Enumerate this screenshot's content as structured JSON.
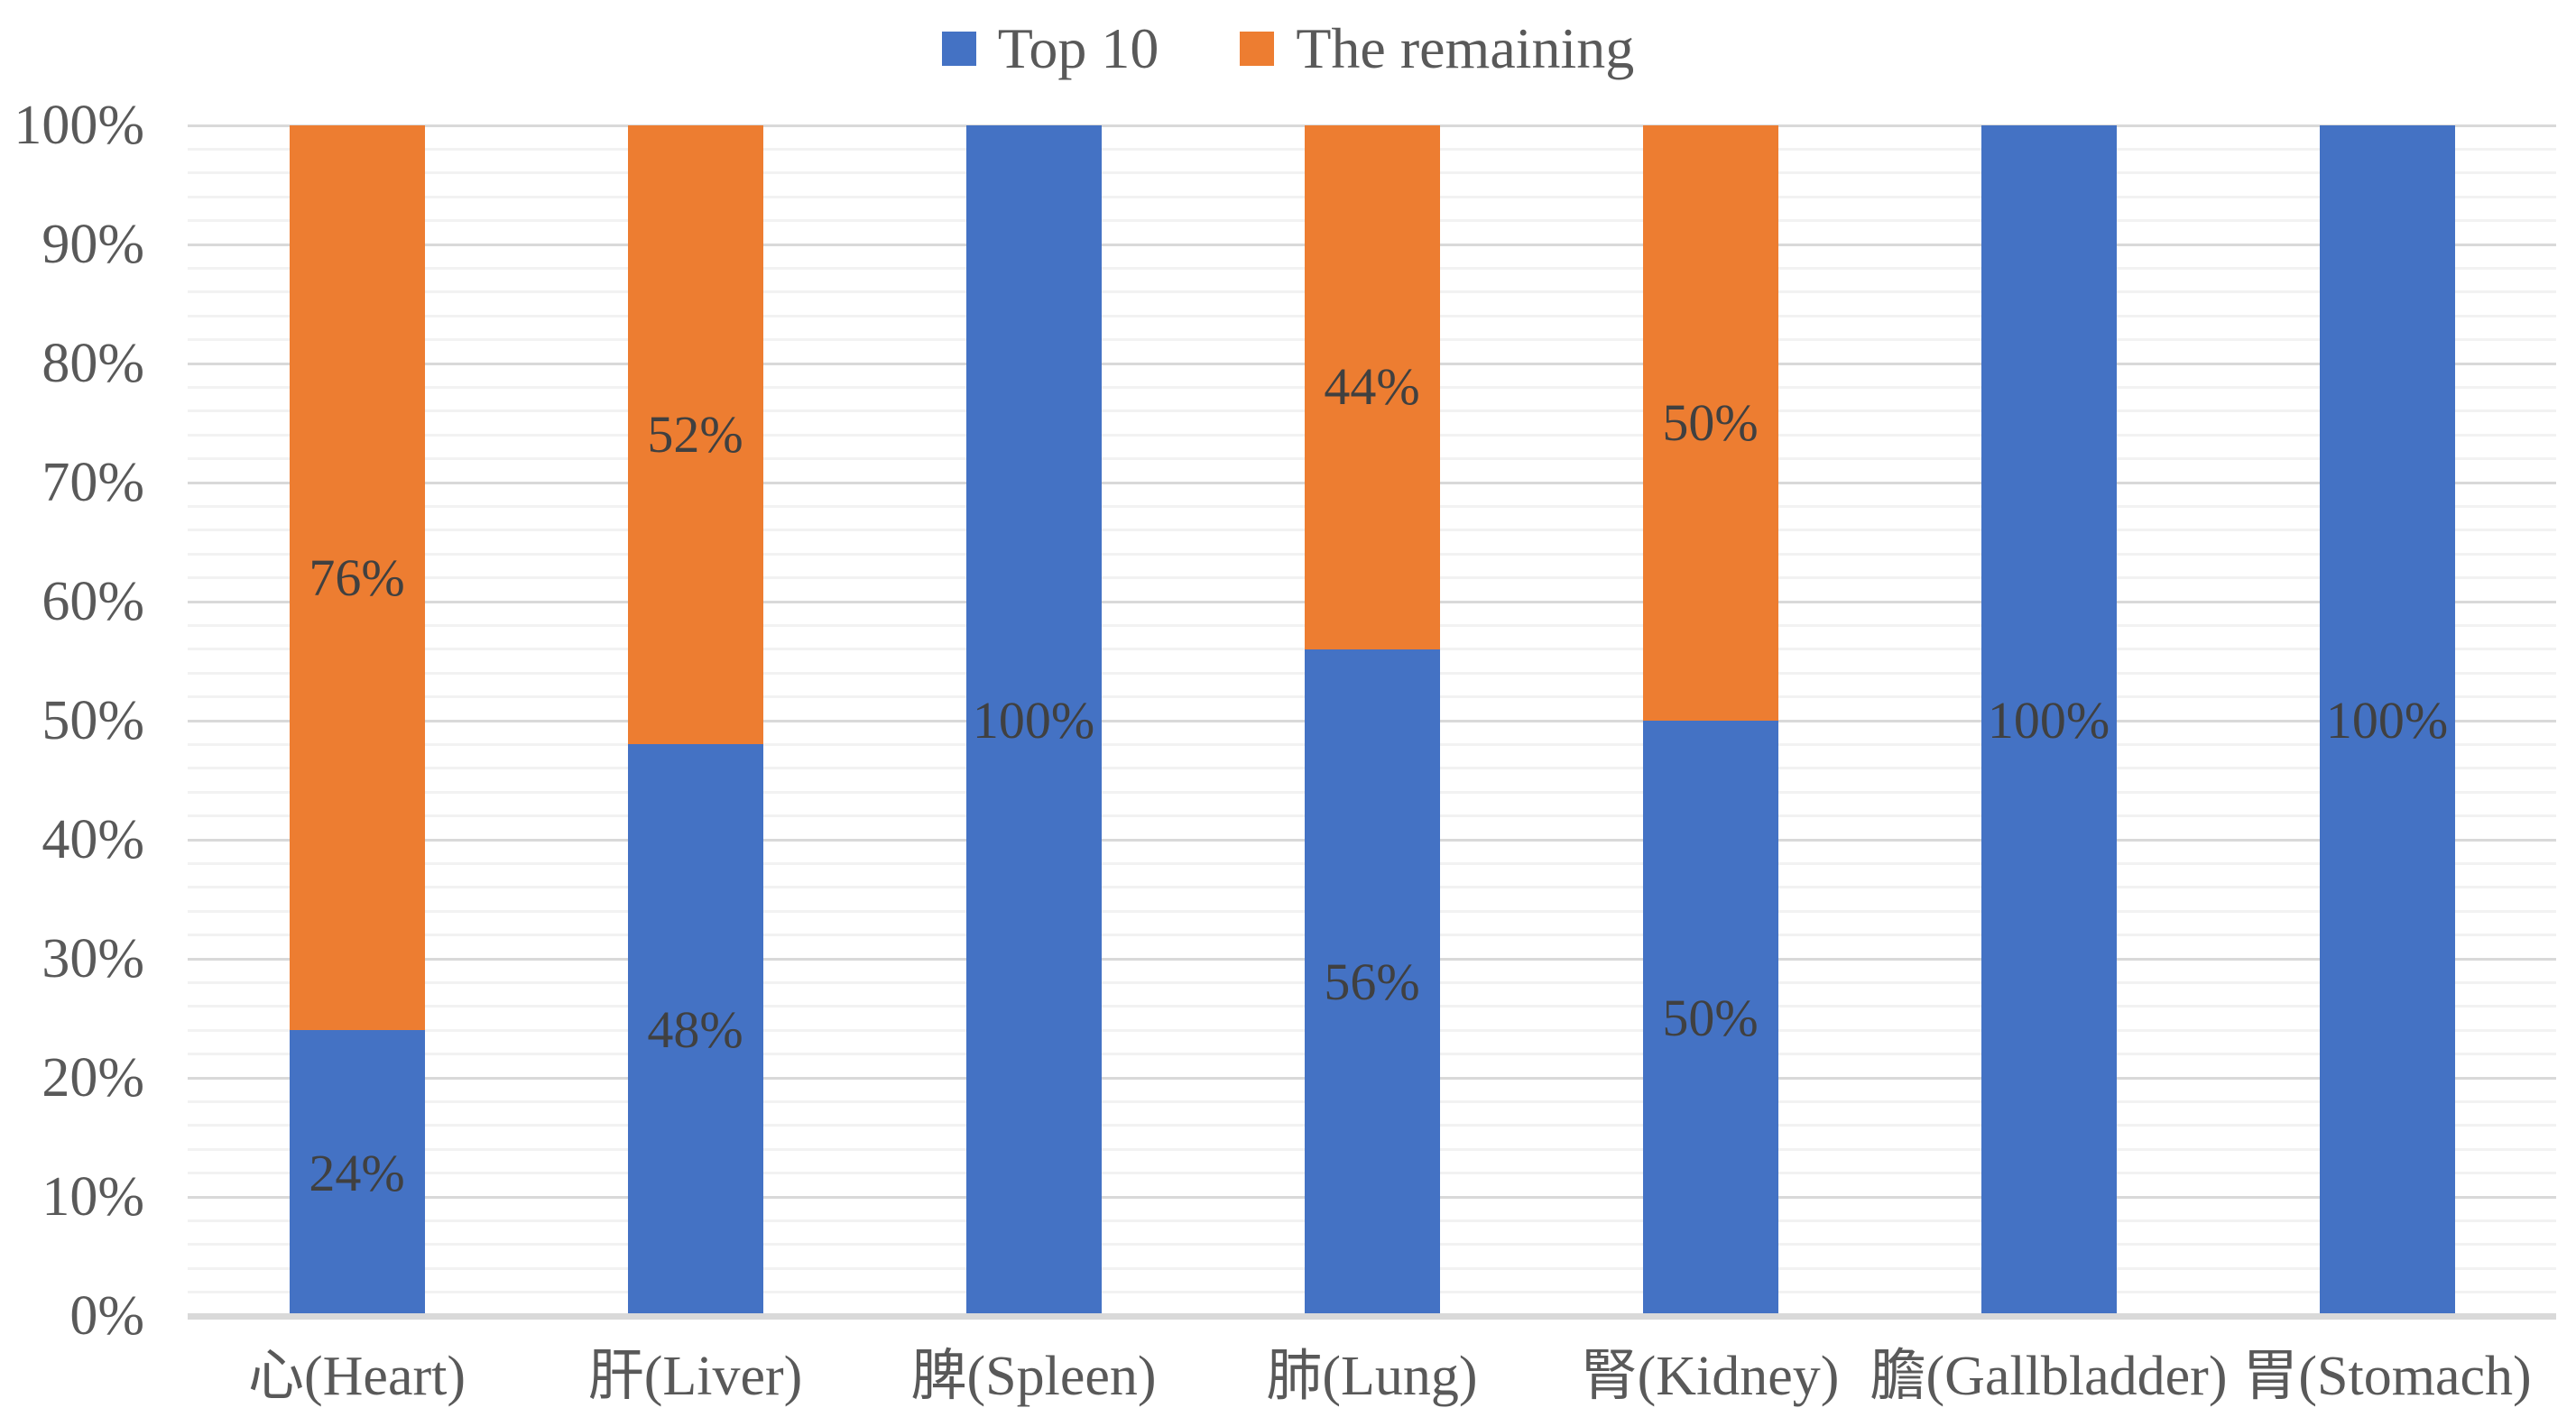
{
  "legend": {
    "position": "top",
    "items": [
      {
        "label": "Top 10",
        "color": "#4472C4"
      },
      {
        "label": "The remaining",
        "color": "#ED7D31"
      }
    ]
  },
  "chart_data": {
    "type": "bar",
    "subtype": "percent-stacked",
    "title": "",
    "xlabel": "",
    "ylabel": "",
    "categories": [
      "心(Heart)",
      "肝(Liver)",
      "脾(Spleen)",
      "肺(Lung)",
      "腎(Kidney)",
      "膽(Gallbladder)",
      "胃(Stomach)"
    ],
    "series": [
      {
        "name": "Top 10",
        "color": "#4472C4",
        "values": [
          24,
          48,
          100,
          56,
          50,
          100,
          100
        ],
        "data_labels": [
          "24%",
          "48%",
          "100%",
          "56%",
          "50%",
          "100%",
          "100%"
        ]
      },
      {
        "name": "The remaining",
        "color": "#ED7D31",
        "values": [
          76,
          52,
          0,
          44,
          50,
          0,
          0
        ],
        "data_labels": [
          "76%",
          "52%",
          "",
          "44%",
          "50%",
          "",
          ""
        ]
      }
    ],
    "y_axis": {
      "min": 0,
      "max": 100,
      "major_step": 10,
      "minor_step": 2,
      "tick_labels": [
        "0%",
        "10%",
        "20%",
        "30%",
        "40%",
        "50%",
        "60%",
        "70%",
        "80%",
        "90%",
        "100%"
      ]
    },
    "grid": {
      "major_color": "#D9D9D9",
      "minor_color": "#F2F2F2",
      "axis_line_color": "#D9D9D9",
      "minor_gridlines": true
    },
    "colors": {
      "axis_text": "#595959",
      "data_label_text": "#404040",
      "background": "#FFFFFF"
    }
  }
}
